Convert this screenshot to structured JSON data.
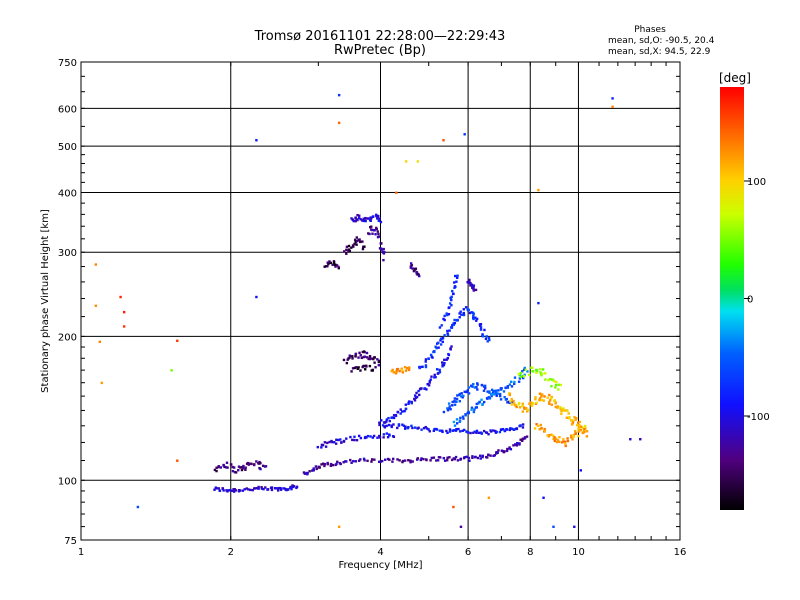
{
  "header": {
    "title_line1": "Tromsø 20161101 22:28:00—22:29:43",
    "title_line2": "RwPretec (Bp)",
    "phases_label": "Phases",
    "phases_o": "mean, sd,O: -90.5, 20.4",
    "phases_x": "mean, sd,X:  94.5, 22.9"
  },
  "colorbar": {
    "unit_label": "[deg]",
    "ticks": [
      "100",
      "0",
      "-100"
    ],
    "tick_values": [
      100,
      0,
      -100
    ],
    "range": [
      -180,
      180
    ]
  },
  "chart_data": {
    "type": "scatter",
    "title": "Tromsø 20161101 22:28:00—22:29:43",
    "subtitle": "RwPretec (Bp)",
    "xlabel": "Frequency [MHz]",
    "ylabel": "Stationary phase Virtual Height [km]",
    "x_scale": "log",
    "y_scale": "log",
    "xlim": [
      1,
      16
    ],
    "ylim": [
      75,
      750
    ],
    "x_ticks": [
      1,
      2,
      4,
      6,
      8,
      10,
      16
    ],
    "x_tick_labels": [
      "1",
      "2",
      "4",
      "6",
      "8",
      "10",
      "16"
    ],
    "y_ticks": [
      75,
      100,
      200,
      300,
      400,
      500,
      600,
      750
    ],
    "y_tick_labels": [
      "75",
      "100",
      "200",
      "300",
      "400",
      "500",
      "600",
      "750"
    ],
    "grid": true,
    "color_dimension": "phase [deg]",
    "color_range": [
      -180,
      180
    ],
    "traces": [
      {
        "x": [
          1.85,
          1.95,
          2.05,
          2.2,
          2.35,
          2.5,
          2.62,
          2.72
        ],
        "y": [
          96,
          95.5,
          95.5,
          96,
          96,
          96,
          96.5,
          97
        ],
        "phase": -110,
        "spread": 0.012
      },
      {
        "x": [
          1.85,
          1.95,
          2.05,
          2.15,
          2.25,
          2.35
        ],
        "y": [
          106,
          108,
          105,
          107,
          109,
          106
        ],
        "phase": -140,
        "spread": 0.02
      },
      {
        "x": [
          2.8,
          2.95,
          3.1,
          3.3,
          3.6,
          4.0,
          4.4,
          4.8,
          5.2,
          5.6,
          6.0,
          6.4,
          6.8,
          7.2,
          7.6,
          7.9
        ],
        "y": [
          103,
          106,
          108,
          109,
          110,
          110,
          110,
          110.5,
          111,
          111,
          111,
          112,
          114,
          116,
          120,
          124
        ],
        "phase": -125,
        "spread": 0.012
      },
      {
        "x": [
          3.0,
          3.2,
          3.4,
          3.7,
          4.0,
          4.3
        ],
        "y": [
          118,
          120,
          122,
          123,
          124,
          124
        ],
        "phase": -100,
        "spread": 0.015
      },
      {
        "x": [
          4.0,
          4.3,
          4.6,
          5.0,
          5.4,
          5.8,
          6.2,
          6.6,
          7.0,
          7.4,
          7.8
        ],
        "y": [
          130,
          130,
          129,
          128,
          127,
          127,
          126,
          126,
          127,
          128,
          130
        ],
        "phase": -90,
        "spread": 0.012
      },
      {
        "x": [
          4.0,
          4.2,
          4.4,
          4.6,
          4.8,
          5.0,
          5.2,
          5.4,
          5.6
        ],
        "y": [
          132,
          135,
          140,
          146,
          153,
          160,
          168,
          178,
          190
        ],
        "phase": -95,
        "spread": 0.015
      },
      {
        "x": [
          4.8,
          5.0,
          5.2,
          5.4,
          5.6,
          5.8,
          6.0,
          6.2,
          6.4,
          6.6
        ],
        "y": [
          170,
          180,
          190,
          200,
          212,
          222,
          230,
          220,
          205,
          195
        ],
        "phase": -75,
        "spread": 0.018
      },
      {
        "x": [
          5.4,
          5.6,
          5.8,
          6.0,
          6.3,
          6.6,
          7.0,
          7.4
        ],
        "y": [
          140,
          145,
          150,
          155,
          158,
          155,
          150,
          145
        ],
        "phase": -60,
        "spread": 0.02
      },
      {
        "x": [
          5.3,
          5.5,
          5.6,
          5.7
        ],
        "y": [
          210,
          230,
          250,
          270
        ],
        "phase": -80,
        "spread": 0.015
      },
      {
        "x": [
          5.6,
          5.9,
          6.2,
          6.5,
          6.8,
          7.2,
          7.6,
          7.9
        ],
        "y": [
          132,
          137,
          142,
          147,
          152,
          158,
          164,
          170
        ],
        "phase": -50,
        "spread": 0.02
      },
      {
        "x": [
          7.2,
          7.5,
          7.8,
          8.1,
          8.4,
          8.7,
          9.0,
          9.3,
          9.6,
          9.9,
          10.2,
          10.5
        ],
        "y": [
          150,
          145,
          140,
          145,
          150,
          148,
          144,
          140,
          136,
          132,
          128,
          124
        ],
        "phase": 110,
        "spread": 0.025
      },
      {
        "x": [
          8.2,
          8.6,
          9.0,
          9.4,
          9.8,
          10.2
        ],
        "y": [
          130,
          126,
          122,
          120,
          124,
          128
        ],
        "phase": 120,
        "spread": 0.02
      },
      {
        "x": [
          7.6,
          8.0,
          8.4,
          8.8,
          9.2
        ],
        "y": [
          165,
          170,
          168,
          160,
          155
        ],
        "phase": 60,
        "spread": 0.025
      },
      {
        "x": [
          3.4,
          3.55,
          3.7,
          3.85,
          4.0
        ],
        "y": [
          178,
          182,
          184,
          180,
          176
        ],
        "phase": -145,
        "spread": 0.02
      },
      {
        "x": [
          3.5,
          3.7,
          3.9
        ],
        "y": [
          170,
          172,
          171
        ],
        "phase": -155,
        "spread": 0.015
      },
      {
        "x": [
          4.2,
          4.4,
          4.6
        ],
        "y": [
          168,
          170,
          172
        ],
        "phase": 120,
        "spread": 0.015
      },
      {
        "x": [
          3.5,
          3.6,
          3.75,
          3.9,
          4.0
        ],
        "y": [
          350,
          355,
          352,
          356,
          350
        ],
        "phase": -105,
        "spread": 0.015
      },
      {
        "x": [
          3.4,
          3.5,
          3.6,
          3.7
        ],
        "y": [
          300,
          310,
          320,
          305
        ],
        "phase": -150,
        "spread": 0.02
      },
      {
        "x": [
          3.1,
          3.2,
          3.3
        ],
        "y": [
          282,
          285,
          280
        ],
        "phase": -155,
        "spread": 0.015
      },
      {
        "x": [
          3.8,
          3.9,
          4.0,
          4.1
        ],
        "y": [
          330,
          340,
          310,
          290
        ],
        "phase": -130,
        "spread": 0.02
      },
      {
        "x": [
          4.6,
          4.7,
          4.8
        ],
        "y": [
          282,
          275,
          270
        ],
        "phase": -140,
        "spread": 0.015
      },
      {
        "x": [
          6.0,
          6.1,
          6.2
        ],
        "y": [
          262,
          255,
          250
        ],
        "phase": -120,
        "spread": 0.015
      }
    ],
    "isolated_points": [
      {
        "x": 1.07,
        "y": 283,
        "phase": 130
      },
      {
        "x": 1.07,
        "y": 232,
        "phase": 125
      },
      {
        "x": 1.09,
        "y": 195,
        "phase": 130
      },
      {
        "x": 1.1,
        "y": 160,
        "phase": 120
      },
      {
        "x": 1.2,
        "y": 242,
        "phase": 165
      },
      {
        "x": 1.22,
        "y": 225,
        "phase": 170
      },
      {
        "x": 1.22,
        "y": 210,
        "phase": 160
      },
      {
        "x": 1.3,
        "y": 88,
        "phase": -60
      },
      {
        "x": 1.52,
        "y": 170,
        "phase": 50
      },
      {
        "x": 1.56,
        "y": 196,
        "phase": 160
      },
      {
        "x": 1.56,
        "y": 110,
        "phase": 150
      },
      {
        "x": 2.25,
        "y": 515,
        "phase": -85
      },
      {
        "x": 2.25,
        "y": 242,
        "phase": -90
      },
      {
        "x": 3.3,
        "y": 640,
        "phase": -70
      },
      {
        "x": 3.3,
        "y": 560,
        "phase": 140
      },
      {
        "x": 3.3,
        "y": 80,
        "phase": 120
      },
      {
        "x": 4.3,
        "y": 400,
        "phase": 140
      },
      {
        "x": 4.5,
        "y": 465,
        "phase": 100
      },
      {
        "x": 4.75,
        "y": 465,
        "phase": 90
      },
      {
        "x": 5.35,
        "y": 515,
        "phase": 150
      },
      {
        "x": 5.9,
        "y": 530,
        "phase": -70
      },
      {
        "x": 8.3,
        "y": 405,
        "phase": 120
      },
      {
        "x": 8.3,
        "y": 235,
        "phase": -80
      },
      {
        "x": 11.7,
        "y": 630,
        "phase": -80
      },
      {
        "x": 11.7,
        "y": 605,
        "phase": 130
      },
      {
        "x": 13.3,
        "y": 122,
        "phase": -120
      },
      {
        "x": 12.7,
        "y": 122,
        "phase": -110
      },
      {
        "x": 5.6,
        "y": 88,
        "phase": 150
      },
      {
        "x": 5.8,
        "y": 80,
        "phase": -130
      },
      {
        "x": 6.6,
        "y": 92,
        "phase": 120
      },
      {
        "x": 8.5,
        "y": 92,
        "phase": -90
      },
      {
        "x": 8.9,
        "y": 80,
        "phase": -60
      },
      {
        "x": 9.8,
        "y": 80,
        "phase": -100
      },
      {
        "x": 10.1,
        "y": 105,
        "phase": -90
      }
    ]
  }
}
